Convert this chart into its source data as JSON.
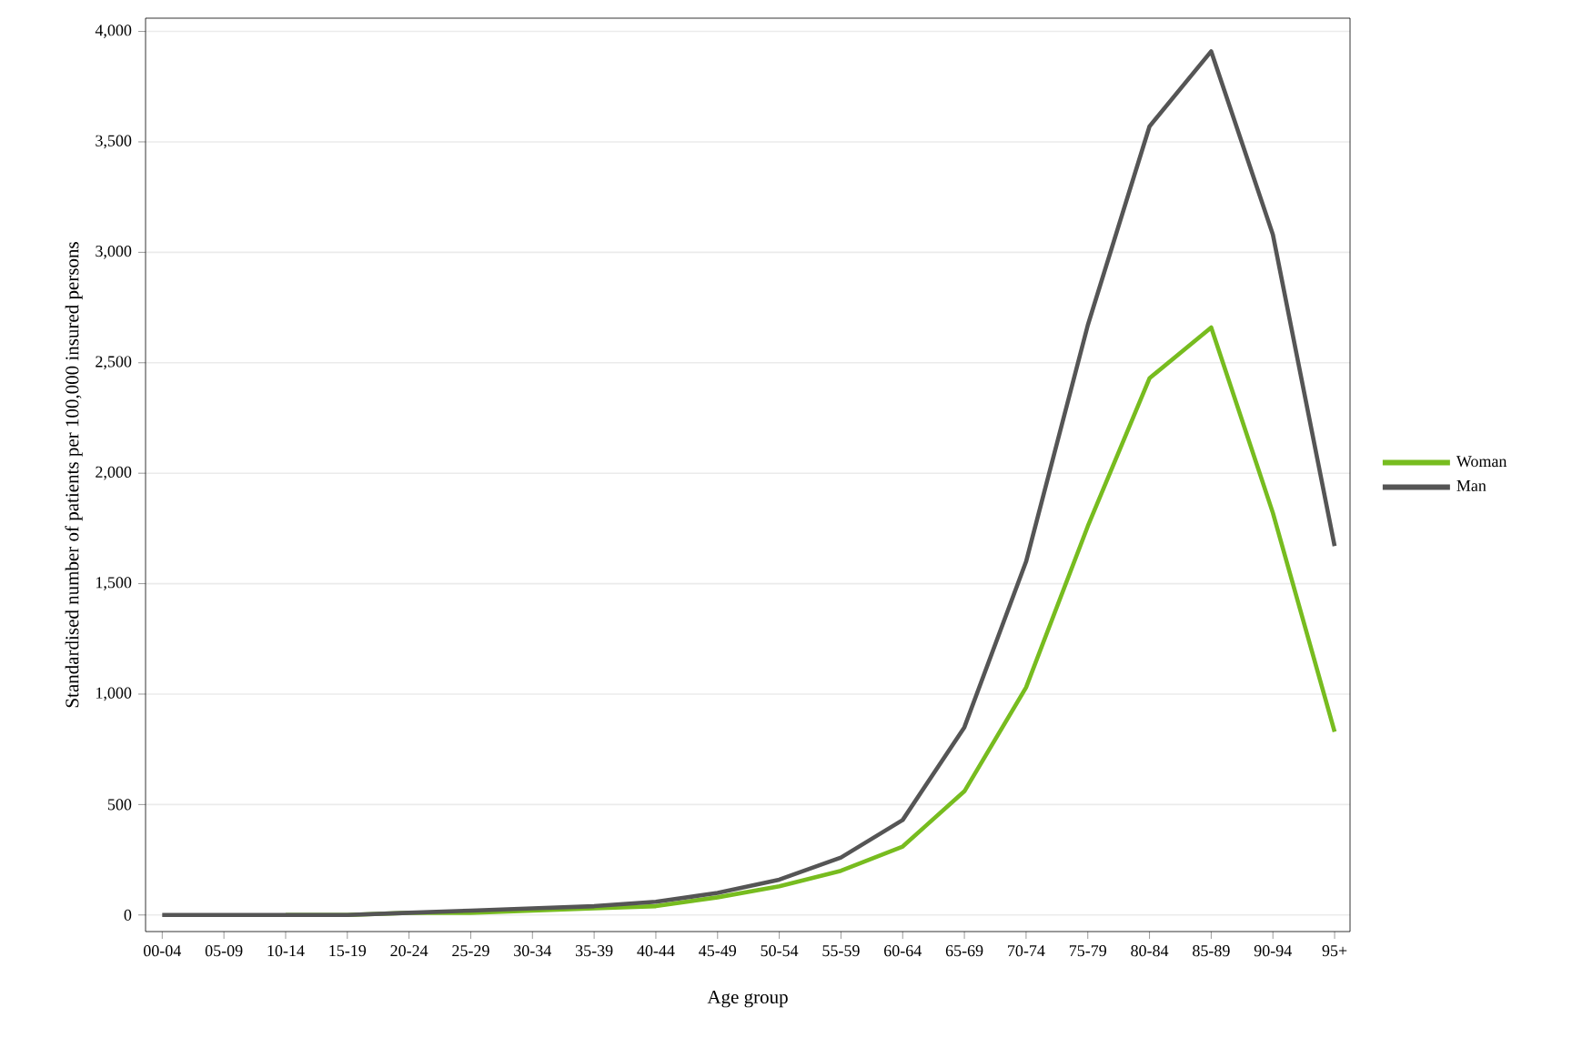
{
  "chart_data": {
    "type": "line",
    "xlabel": "Age group",
    "ylabel": "Standardised number of patients per 100,000 insured persons",
    "categories": [
      "00-04",
      "05-09",
      "10-14",
      "15-19",
      "20-24",
      "25-29",
      "30-34",
      "35-39",
      "40-44",
      "45-49",
      "50-54",
      "55-59",
      "60-64",
      "65-69",
      "70-74",
      "75-79",
      "80-84",
      "85-89",
      "90-94",
      "95+"
    ],
    "series": [
      {
        "name": "Woman",
        "color": "#77bc1f",
        "values": [
          null,
          null,
          0,
          0,
          10,
          10,
          20,
          30,
          40,
          80,
          130,
          200,
          310,
          560,
          1030,
          1760,
          2430,
          2660,
          1820,
          830
        ]
      },
      {
        "name": "Man",
        "color": "#555555",
        "values": [
          0,
          0,
          0,
          0,
          10,
          20,
          30,
          40,
          60,
          100,
          160,
          260,
          430,
          850,
          1600,
          2670,
          3570,
          3910,
          3080,
          1670
        ]
      }
    ],
    "ylim": [
      -75,
      4060
    ],
    "yticks": [
      0,
      500,
      {
        "value": 1000,
        "label": "1,000"
      },
      {
        "value": 1500,
        "label": "1,500"
      },
      {
        "value": 2000,
        "label": "2,000"
      },
      {
        "value": 2500,
        "label": "2,500"
      },
      {
        "value": 3000,
        "label": "3,000"
      },
      {
        "value": 3500,
        "label": "3,500"
      },
      {
        "value": 4000,
        "label": "4,000"
      }
    ],
    "grid": "y",
    "legend": "right",
    "marker": "none",
    "line_style": "solid"
  }
}
